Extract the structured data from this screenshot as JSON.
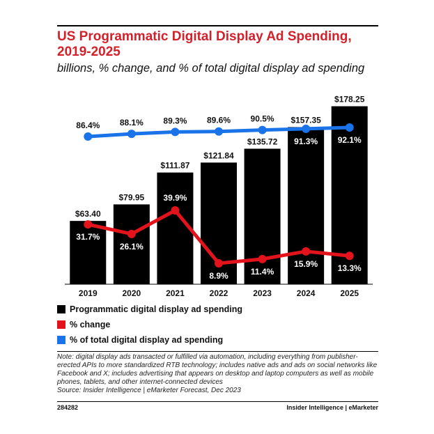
{
  "header": {
    "title": "US Programmatic Digital Display Ad Spending, 2019-2025",
    "subtitle": "billions, % change, and % of total digital display ad spending"
  },
  "chart_data": {
    "type": "bar",
    "categories": [
      "2019",
      "2020",
      "2021",
      "2022",
      "2023",
      "2024",
      "2025"
    ],
    "series": [
      {
        "name": "Programmatic digital display ad spending",
        "kind": "bar",
        "color": "#000000",
        "values": [
          63.4,
          79.95,
          111.87,
          121.84,
          135.72,
          157.35,
          178.25
        ],
        "labels": [
          "$63.40",
          "$79.95",
          "$111.87",
          "$121.84",
          "$135.72",
          "$157.35",
          "$178.25"
        ]
      },
      {
        "name": "% change",
        "kind": "line",
        "color": "#e3131b",
        "values": [
          31.7,
          26.1,
          39.9,
          8.9,
          11.4,
          15.9,
          13.3
        ],
        "labels": [
          "31.7%",
          "26.1%",
          "39.9%",
          "8.9%",
          "11.4%",
          "15.9%",
          "13.3%"
        ]
      },
      {
        "name": "% of total digital display ad spending",
        "kind": "line",
        "color": "#1a73e8",
        "values": [
          86.4,
          88.1,
          89.3,
          89.6,
          90.5,
          91.3,
          92.1
        ],
        "labels": [
          "86.4%",
          "88.1%",
          "89.3%",
          "89.6%",
          "90.5%",
          "91.3%",
          "92.1%"
        ]
      }
    ],
    "ylim": [
      0,
      180
    ],
    "grid": false,
    "legend_position": "bottom"
  },
  "note": "Note: digital display ads transacted or fulfilled via automation, including everything from publisher-erected APIs to more standardized RTB technology; includes native ads and ads on social networks like Facebook and X; includes advertising that appears on desktop and laptop computers as well as mobile phones, tablets, and other internet-connected devices",
  "source": "Source: Insider Intelligence | eMarketer Forecast, Dec 2023",
  "footer": {
    "chart_id": "284282",
    "brand": "Insider Intelligence | eMarketer"
  }
}
